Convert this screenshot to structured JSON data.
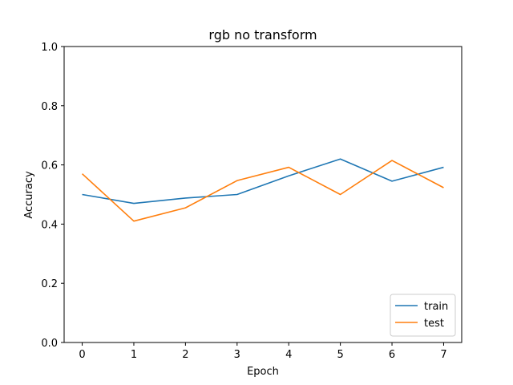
{
  "chart_data": {
    "type": "line",
    "title": "rgb no transform",
    "xlabel": "Epoch",
    "ylabel": "Accuracy",
    "x": [
      0,
      1,
      2,
      3,
      4,
      5,
      6,
      7
    ],
    "xlim": [
      -0.35,
      7.35
    ],
    "ylim": [
      0.0,
      1.0
    ],
    "xticks": [
      "0",
      "1",
      "2",
      "3",
      "4",
      "5",
      "6",
      "7"
    ],
    "yticks": [
      "0.0",
      "0.2",
      "0.4",
      "0.6",
      "0.8",
      "1.0"
    ],
    "grid": false,
    "legend_position": "lower right",
    "series": [
      {
        "name": "train",
        "color": "#1f77b4",
        "values": [
          0.5,
          0.47,
          0.488,
          0.5,
          0.563,
          0.62,
          0.545,
          0.592
        ]
      },
      {
        "name": "test",
        "color": "#ff7f0e",
        "values": [
          0.57,
          0.41,
          0.455,
          0.547,
          0.592,
          0.5,
          0.615,
          0.523
        ]
      }
    ]
  }
}
